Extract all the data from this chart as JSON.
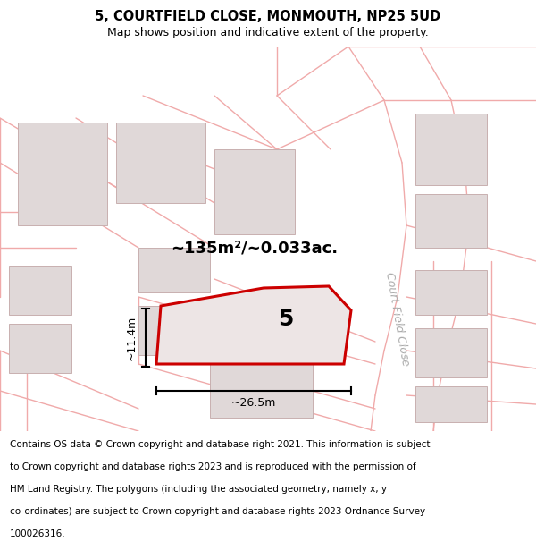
{
  "title": "5, COURTFIELD CLOSE, MONMOUTH, NP25 5UD",
  "subtitle": "Map shows position and indicative extent of the property.",
  "footer_lines": [
    "Contains OS data © Crown copyright and database right 2021. This information is subject",
    "to Crown copyright and database rights 2023 and is reproduced with the permission of",
    "HM Land Registry. The polygons (including the associated geometry, namely x, y",
    "co-ordinates) are subject to Crown copyright and database rights 2023 Ordnance Survey",
    "100026316."
  ],
  "area_label": "~135m²/~0.033ac.",
  "plot_number": "5",
  "dim_width": "~26.5m",
  "dim_height": "~11.4m",
  "road_label": "Court Field Close",
  "bg_color": "#ffffff",
  "map_bg": "#ffffff",
  "plot_fill": "#e8e0e0",
  "plot_outline": "#cc0000",
  "road_line_color": "#f0aaaa",
  "building_fill": "#e0d8d8",
  "building_outline": "#c8b0b0",
  "dim_color": "#111111",
  "title_fontsize": 10.5,
  "subtitle_fontsize": 9,
  "footer_fontsize": 7.5,
  "area_fontsize": 13,
  "plot_num_fontsize": 18,
  "road_label_fontsize": 9
}
